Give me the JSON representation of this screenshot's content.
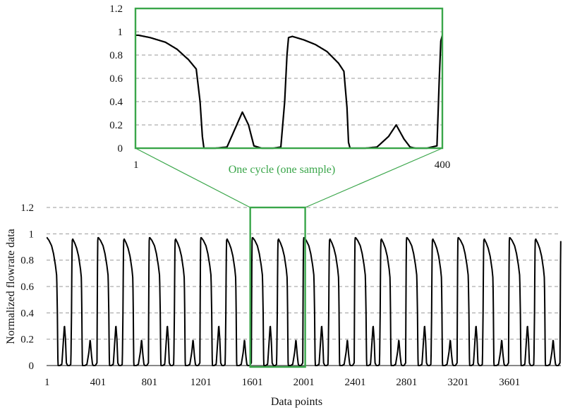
{
  "chart_data": [
    {
      "type": "line",
      "role": "inset",
      "title": "",
      "xlabel": "",
      "ylabel": "",
      "x_tick_labels": [
        "1",
        "400"
      ],
      "xlim": [
        1,
        400
      ],
      "y_tick_labels": [
        "0",
        "0.2",
        "0.4",
        "0.6",
        "0.8",
        "1",
        "1.2"
      ],
      "ylim": [
        0,
        1.2
      ],
      "grid": true,
      "caption": "One cycle (one sample)",
      "series": [
        {
          "x": [
            1,
            5,
            20,
            40,
            55,
            70,
            80,
            85,
            88,
            90,
            95,
            105,
            120,
            130,
            140,
            148,
            155,
            165,
            180,
            190,
            195,
            198,
            200,
            205,
            220,
            235,
            250,
            265,
            272,
            276,
            278,
            280,
            285,
            300,
            315,
            330,
            340,
            350,
            358,
            365,
            380,
            393,
            396,
            398,
            400
          ],
          "y": [
            0.97,
            0.97,
            0.95,
            0.91,
            0.85,
            0.76,
            0.68,
            0.4,
            0.1,
            0.0,
            0.0,
            0.0,
            0.01,
            0.16,
            0.31,
            0.2,
            0.02,
            0.0,
            0.0,
            0.01,
            0.4,
            0.8,
            0.95,
            0.96,
            0.93,
            0.89,
            0.83,
            0.73,
            0.66,
            0.35,
            0.05,
            0.0,
            0.0,
            0.0,
            0.01,
            0.1,
            0.2,
            0.08,
            0.01,
            0.0,
            0.0,
            0.02,
            0.6,
            0.92,
            0.97
          ]
        }
      ]
    },
    {
      "type": "line",
      "role": "main",
      "title": "",
      "xlabel": "Data points",
      "ylabel": "Normalized flowrate data",
      "x_tick_labels": [
        "1",
        "401",
        "801",
        "1201",
        "1601",
        "2001",
        "2401",
        "2801",
        "3201",
        "3601"
      ],
      "x_ticks": [
        1,
        401,
        801,
        1201,
        1601,
        2001,
        2401,
        2801,
        3201,
        3601
      ],
      "xlim": [
        1,
        4000
      ],
      "y_tick_labels": [
        "0",
        "0.2",
        "0.4",
        "0.6",
        "0.8",
        "1",
        "1.2"
      ],
      "ylim": [
        0,
        1.2
      ],
      "grid": true,
      "highlight_range": [
        1601,
        2001
      ],
      "cycle_length": 400,
      "cycles": 10,
      "cycle_shape_from": "inset"
    }
  ],
  "colors": {
    "highlight": "#3aa64a",
    "trace": "#000000",
    "grid": "#9a9a9a"
  }
}
